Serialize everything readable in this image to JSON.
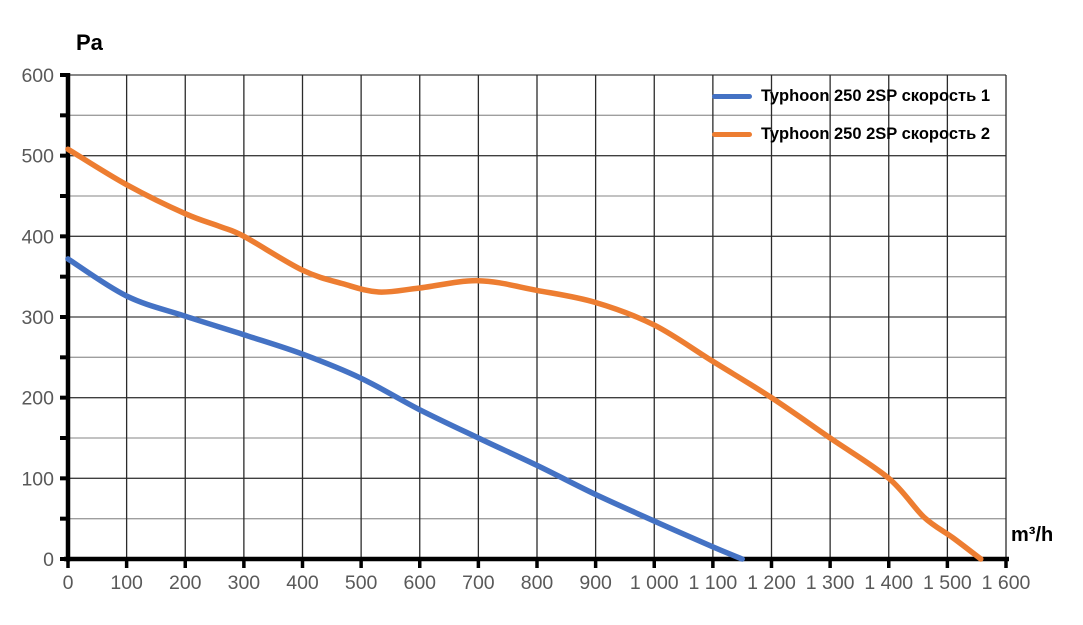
{
  "chart_data": {
    "type": "line",
    "title": "",
    "ylabel": "Pa",
    "xlabel": "m³/h",
    "x_range": [
      0,
      1600
    ],
    "y_range": [
      0,
      600
    ],
    "x_tick_step": 100,
    "y_tick_step_major": 100,
    "y_tick_step_minor": 50,
    "x_tick_labels": [
      "0",
      "100",
      "200",
      "300",
      "400",
      "500",
      "600",
      "700",
      "800",
      "900",
      "1 000",
      "1 100",
      "1 200",
      "1 300",
      "1 400",
      "1 500",
      "1 600"
    ],
    "y_tick_labels": [
      "0",
      "100",
      "200",
      "300",
      "400",
      "500",
      "600"
    ],
    "grid": "vertical majors every 100; horizontal majors every 100 (dark) and minors every 50 (light)",
    "legend_position": "top-right-inside, no border",
    "series": [
      {
        "name": "Typhoon 250 2SP скорость 1",
        "color": "#4472C4",
        "points": [
          [
            0,
            372
          ],
          [
            100,
            326
          ],
          [
            200,
            301
          ],
          [
            300,
            278
          ],
          [
            400,
            254
          ],
          [
            500,
            224
          ],
          [
            600,
            185
          ],
          [
            700,
            150
          ],
          [
            800,
            116
          ],
          [
            900,
            80
          ],
          [
            1000,
            47
          ],
          [
            1100,
            15
          ],
          [
            1150,
            0
          ]
        ]
      },
      {
        "name": "Typhoon 250 2SP скорость 2",
        "color": "#ED7D31",
        "points": [
          [
            0,
            508
          ],
          [
            100,
            464
          ],
          [
            200,
            428
          ],
          [
            260,
            412
          ],
          [
            300,
            400
          ],
          [
            400,
            358
          ],
          [
            470,
            341
          ],
          [
            530,
            331
          ],
          [
            600,
            336
          ],
          [
            700,
            345
          ],
          [
            800,
            333
          ],
          [
            900,
            318
          ],
          [
            1000,
            290
          ],
          [
            1100,
            245
          ],
          [
            1200,
            200
          ],
          [
            1300,
            150
          ],
          [
            1400,
            100
          ],
          [
            1460,
            52
          ],
          [
            1510,
            26
          ],
          [
            1557,
            0
          ]
        ]
      }
    ],
    "colors": {
      "axis": "#000000",
      "major_grid": "#3F3F3F",
      "vertical_grid": "#2B2B2B",
      "minor_grid": "#9E9E9E",
      "tick_label": "#595959"
    }
  }
}
